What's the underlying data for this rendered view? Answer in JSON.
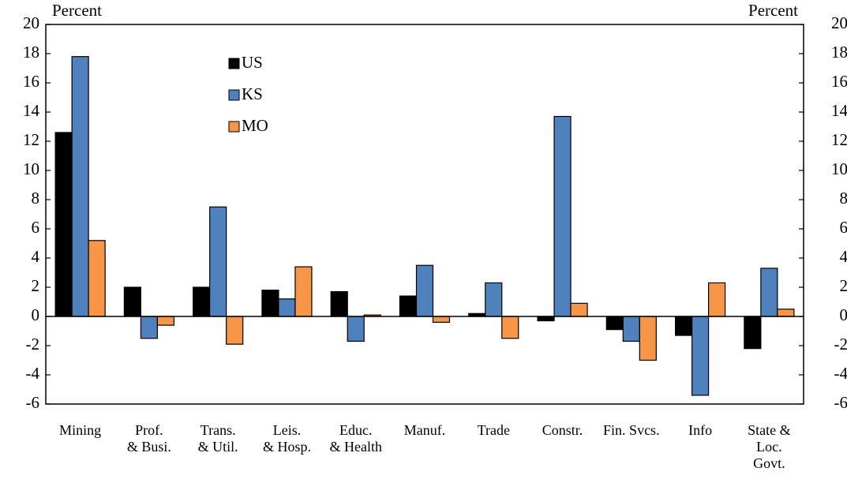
{
  "chart_data": {
    "type": "bar",
    "y_label": "Percent",
    "y2_label": "Percent",
    "categories": [
      "Mining",
      "Prof.\n& Busi.",
      "Trans.\n& Util.",
      "Leis.\n& Hosp.",
      "Educ.\n& Health",
      "Manuf.",
      "Trade",
      "Constr.",
      "Fin. Svcs.",
      "Info",
      "State &\nLoc.\nGovt."
    ],
    "series": [
      {
        "name": "US",
        "color": "#000000",
        "values": [
          12.6,
          2.0,
          2.0,
          1.8,
          1.7,
          1.4,
          0.2,
          -0.3,
          -0.9,
          -1.3,
          -2.2
        ]
      },
      {
        "name": "KS",
        "color": "#4f81bd",
        "values": [
          17.8,
          -1.5,
          7.5,
          1.2,
          -1.7,
          3.5,
          2.3,
          13.7,
          -1.7,
          -5.4,
          3.3
        ]
      },
      {
        "name": "MO",
        "color": "#f79646",
        "values": [
          5.2,
          -0.6,
          -1.9,
          3.4,
          0.1,
          -0.4,
          -1.5,
          0.9,
          -3.0,
          2.3,
          0.5
        ]
      }
    ],
    "ylim": [
      -6,
      20
    ],
    "yticks": [
      -6,
      -4,
      -2,
      0,
      2,
      4,
      6,
      8,
      10,
      12,
      14,
      16,
      18,
      20
    ],
    "y2lim": [
      -6,
      20
    ],
    "y2ticks": [
      -6,
      -4,
      -2,
      0,
      2,
      4,
      6,
      8,
      10,
      12,
      14,
      16,
      18,
      20
    ],
    "legend": "upper-left",
    "grid": false
  }
}
